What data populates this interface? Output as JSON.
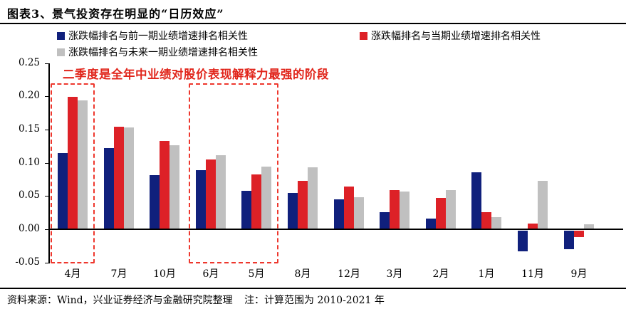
{
  "header": {
    "title": "图表3、景气投资存在明显的“日历效应”"
  },
  "legend": {
    "prev_period": {
      "label": "涨跌幅排名与前一期业绩增速排名相关性",
      "color": "#10207C"
    },
    "current_period": {
      "label": "涨跌幅排名与当期业绩增速排名相关性",
      "color": "#DD2127"
    },
    "next_period": {
      "label": "涨跌幅排名与未来一期业绩增速排名相关性",
      "color": "#C0C0C0"
    }
  },
  "annotation": {
    "text": "二季度是全年中业绩对股价表现解释力最强的阶段",
    "color": "#E1251B"
  },
  "chart_data": {
    "type": "bar",
    "title": "景气投资存在明显的“日历效应”",
    "categories": [
      "4月",
      "7月",
      "10月",
      "6月",
      "5月",
      "8月",
      "12月",
      "3月",
      "2月",
      "1月",
      "11月",
      "9月"
    ],
    "series": [
      {
        "name": "涨跌幅排名与前一期业绩增速排名相关性",
        "color": "#10207C",
        "values": [
          0.115,
          0.122,
          0.081,
          0.089,
          0.058,
          0.055,
          0.045,
          0.026,
          0.016,
          0.086,
          -0.031,
          -0.028
        ]
      },
      {
        "name": "涨跌幅排名与当期业绩增速排名相关性",
        "color": "#DD2127",
        "values": [
          0.199,
          0.154,
          0.133,
          0.105,
          0.082,
          0.073,
          0.064,
          0.059,
          0.047,
          0.026,
          0.009,
          -0.01
        ]
      },
      {
        "name": "涨跌幅排名与未来一期业绩增速排名相关性",
        "color": "#C0C0C0",
        "values": [
          0.194,
          0.153,
          0.126,
          0.112,
          0.094,
          0.093,
          0.048,
          0.057,
          0.059,
          0.018,
          0.073,
          0.008
        ]
      }
    ],
    "ylim": [
      -0.05,
      0.25
    ],
    "ytick_labels": [
      "0.25",
      "0.20",
      "0.15",
      "0.10",
      "0.05",
      "0.00",
      "-0.05"
    ],
    "grid": false,
    "legend_position": "top",
    "highlight_boxes": [
      {
        "from": 0,
        "to": 0,
        "categories": [
          "4月"
        ]
      },
      {
        "from": 3,
        "to": 4,
        "categories": [
          "6月",
          "5月"
        ]
      }
    ]
  },
  "footer": {
    "source": "资料来源：Wind，兴业证券经济与金融研究院整理",
    "note": "注：计算范围为 2010-2021 年"
  }
}
